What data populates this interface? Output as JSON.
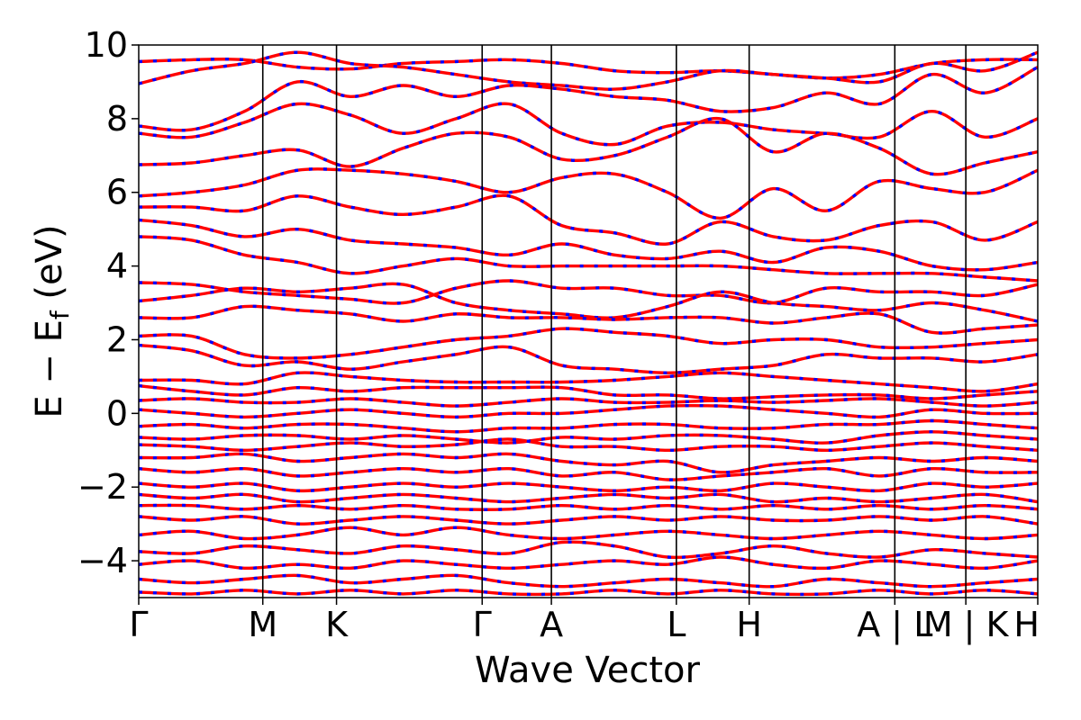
{
  "chart_data": {
    "type": "line",
    "title": "",
    "xlabel": "Wave Vector",
    "ylabel": "E − E",
    "ylabel_sub": "f",
    "ylabel_unit": " (eV)",
    "ylim": [
      -5,
      10
    ],
    "yticks": [
      -4,
      -2,
      0,
      2,
      4,
      6,
      8,
      10
    ],
    "ytick_labels": [
      "−4",
      "−2",
      "0",
      "2",
      "4",
      "6",
      "8",
      "10"
    ],
    "xlim": [
      0,
      1
    ],
    "high_symmetry_points": [
      {
        "label": "Γ",
        "x": 0.0
      },
      {
        "label": "M",
        "x": 0.138
      },
      {
        "label": "K",
        "x": 0.22
      },
      {
        "label": "Γ",
        "x": 0.382
      },
      {
        "label": "A",
        "x": 0.459
      },
      {
        "label": "L",
        "x": 0.598
      },
      {
        "label": "H",
        "x": 0.679
      },
      {
        "label": "A | L",
        "x": 0.841
      },
      {
        "label": "M | K",
        "x": 0.92
      },
      {
        "label": "H",
        "x": 1.0
      }
    ],
    "series": [
      {
        "color": "#ff0000",
        "style": "solid"
      },
      {
        "color": "#0000ff",
        "style": "dotted"
      }
    ],
    "bands": [
      [
        9.55,
        9.6,
        9.6,
        9.4,
        9.35,
        9.5,
        9.55,
        9.6,
        9.5,
        9.3,
        9.25,
        9.3,
        9.2,
        9.1,
        9.2,
        9.5,
        9.6,
        9.6
      ],
      [
        8.95,
        9.3,
        9.5,
        9.8,
        9.5,
        9.4,
        9.2,
        9.0,
        8.9,
        8.8,
        9.0,
        9.3,
        9.2,
        9.1,
        9.0,
        9.5,
        9.3,
        9.8
      ],
      [
        7.8,
        7.7,
        8.2,
        9.0,
        8.6,
        8.9,
        8.6,
        8.9,
        8.8,
        8.6,
        8.5,
        8.2,
        8.3,
        8.7,
        8.4,
        9.2,
        8.7,
        9.4
      ],
      [
        7.6,
        7.5,
        7.9,
        8.4,
        8.1,
        7.6,
        8.0,
        8.4,
        7.6,
        7.3,
        7.8,
        7.9,
        7.7,
        7.6,
        7.5,
        8.2,
        7.5,
        8.0
      ],
      [
        6.75,
        6.8,
        7.0,
        7.15,
        6.7,
        7.2,
        7.6,
        7.5,
        6.9,
        7.0,
        7.5,
        8.0,
        7.1,
        7.6,
        7.2,
        6.5,
        6.8,
        7.1
      ],
      [
        5.9,
        6.0,
        6.2,
        6.6,
        6.6,
        6.5,
        6.3,
        6.0,
        6.4,
        6.5,
        6.0,
        5.3,
        6.1,
        5.5,
        6.3,
        6.1,
        6.0,
        6.6
      ],
      [
        5.6,
        5.6,
        5.5,
        5.9,
        5.6,
        5.4,
        5.6,
        5.9,
        5.1,
        4.9,
        4.6,
        5.2,
        4.8,
        4.7,
        5.1,
        5.2,
        4.7,
        5.2
      ],
      [
        5.25,
        5.1,
        4.8,
        5.0,
        4.7,
        4.6,
        4.5,
        4.3,
        4.6,
        4.3,
        4.2,
        4.4,
        4.1,
        4.5,
        4.4,
        4.0,
        3.9,
        4.1
      ],
      [
        4.8,
        4.7,
        4.3,
        4.1,
        3.8,
        4.0,
        4.2,
        4.0,
        4.0,
        4.0,
        4.0,
        4.0,
        3.9,
        3.8,
        3.8,
        3.8,
        3.7,
        3.6
      ],
      [
        3.55,
        3.5,
        3.3,
        3.2,
        3.1,
        3.0,
        3.4,
        3.6,
        3.4,
        3.4,
        3.2,
        3.2,
        3.0,
        3.4,
        3.3,
        3.3,
        3.2,
        3.5
      ],
      [
        3.05,
        3.2,
        3.4,
        3.3,
        3.4,
        3.5,
        3.0,
        2.8,
        2.7,
        2.6,
        2.9,
        3.3,
        3.0,
        2.9,
        2.8,
        3.0,
        2.8,
        2.5
      ],
      [
        2.6,
        2.6,
        2.9,
        2.8,
        2.7,
        2.5,
        2.7,
        2.6,
        2.6,
        2.55,
        2.6,
        2.6,
        2.45,
        2.6,
        2.7,
        2.2,
        2.3,
        2.4
      ],
      [
        2.1,
        2.1,
        1.6,
        1.5,
        1.6,
        1.8,
        2.0,
        2.1,
        2.3,
        2.2,
        2.1,
        1.9,
        2.0,
        2.0,
        1.8,
        1.8,
        1.9,
        2.0
      ],
      [
        1.85,
        1.7,
        1.3,
        1.4,
        1.2,
        1.4,
        1.6,
        1.8,
        1.3,
        1.2,
        1.1,
        1.2,
        1.3,
        1.6,
        1.5,
        1.5,
        1.4,
        1.6
      ],
      [
        0.9,
        0.9,
        0.8,
        1.1,
        1.0,
        0.9,
        0.85,
        0.85,
        0.85,
        0.9,
        1.0,
        1.1,
        1.0,
        0.9,
        0.8,
        0.7,
        0.6,
        0.8
      ],
      [
        0.75,
        0.6,
        0.5,
        0.7,
        0.6,
        0.7,
        0.7,
        0.7,
        0.7,
        0.5,
        0.5,
        0.4,
        0.45,
        0.5,
        0.5,
        0.4,
        0.5,
        0.6
      ],
      [
        0.35,
        0.4,
        0.3,
        0.3,
        0.4,
        0.3,
        0.2,
        0.3,
        0.4,
        0.3,
        0.3,
        0.35,
        0.3,
        0.35,
        0.4,
        0.3,
        0.2,
        0.3
      ],
      [
        0.1,
        0.0,
        -0.1,
        0.0,
        0.1,
        0.0,
        -0.1,
        0.0,
        0.0,
        0.1,
        0.2,
        0.2,
        0.1,
        0.0,
        -0.1,
        0.1,
        0.0,
        0.0
      ],
      [
        -0.35,
        -0.3,
        -0.4,
        -0.3,
        -0.3,
        -0.4,
        -0.5,
        -0.4,
        -0.4,
        -0.3,
        -0.3,
        -0.4,
        -0.4,
        -0.3,
        -0.3,
        -0.2,
        -0.3,
        -0.4
      ],
      [
        -0.65,
        -0.7,
        -0.6,
        -0.6,
        -0.7,
        -0.6,
        -0.7,
        -0.8,
        -0.65,
        -0.7,
        -0.6,
        -0.6,
        -0.7,
        -0.8,
        -0.6,
        -0.5,
        -0.6,
        -0.7
      ],
      [
        -0.85,
        -0.9,
        -1.0,
        -0.9,
        -0.8,
        -0.9,
        -0.85,
        -0.7,
        -0.9,
        -0.9,
        -1.0,
        -0.9,
        -0.9,
        -1.0,
        -0.9,
        -0.8,
        -0.9,
        -1.0
      ],
      [
        -1.2,
        -1.2,
        -1.1,
        -1.3,
        -1.2,
        -1.1,
        -1.2,
        -1.1,
        -1.3,
        -1.4,
        -1.3,
        -1.6,
        -1.4,
        -1.3,
        -1.2,
        -1.3,
        -1.2,
        -1.3
      ],
      [
        -1.5,
        -1.6,
        -1.5,
        -1.7,
        -1.6,
        -1.5,
        -1.6,
        -1.5,
        -1.7,
        -1.6,
        -1.8,
        -1.7,
        -1.6,
        -1.5,
        -1.7,
        -1.5,
        -1.6,
        -1.6
      ],
      [
        -1.9,
        -2.0,
        -1.9,
        -2.1,
        -2.0,
        -1.9,
        -2.0,
        -1.9,
        -2.0,
        -2.1,
        -2.0,
        -2.1,
        -1.9,
        -2.0,
        -2.1,
        -1.9,
        -2.0,
        -1.9
      ],
      [
        -2.2,
        -2.3,
        -2.2,
        -2.4,
        -2.3,
        -2.2,
        -2.3,
        -2.4,
        -2.3,
        -2.2,
        -2.3,
        -2.2,
        -2.4,
        -2.3,
        -2.4,
        -2.3,
        -2.2,
        -2.4
      ],
      [
        -2.5,
        -2.5,
        -2.6,
        -2.5,
        -2.6,
        -2.5,
        -2.6,
        -2.6,
        -2.5,
        -2.6,
        -2.5,
        -2.6,
        -2.5,
        -2.6,
        -2.5,
        -2.6,
        -2.5,
        -2.6
      ],
      [
        -2.8,
        -2.9,
        -2.8,
        -3.0,
        -2.9,
        -2.8,
        -2.9,
        -3.0,
        -2.9,
        -2.8,
        -2.9,
        -2.8,
        -2.9,
        -2.9,
        -2.8,
        -2.9,
        -2.8,
        -3.0
      ],
      [
        -3.3,
        -3.2,
        -3.4,
        -3.3,
        -3.1,
        -3.3,
        -3.1,
        -3.3,
        -3.4,
        -3.3,
        -3.2,
        -3.3,
        -3.4,
        -3.3,
        -3.2,
        -3.3,
        -3.4,
        -3.3
      ],
      [
        -3.75,
        -3.8,
        -3.6,
        -3.7,
        -3.8,
        -3.6,
        -3.7,
        -3.8,
        -3.5,
        -3.6,
        -3.9,
        -3.8,
        -3.6,
        -3.8,
        -3.9,
        -3.7,
        -3.8,
        -3.9
      ],
      [
        -4.1,
        -4.0,
        -4.2,
        -4.1,
        -4.2,
        -4.0,
        -4.1,
        -4.2,
        -4.1,
        -4.0,
        -4.1,
        -3.9,
        -4.1,
        -4.2,
        -4.0,
        -4.1,
        -4.2,
        -4.0
      ],
      [
        -4.5,
        -4.6,
        -4.5,
        -4.4,
        -4.6,
        -4.5,
        -4.4,
        -4.6,
        -4.7,
        -4.6,
        -4.5,
        -4.6,
        -4.7,
        -4.5,
        -4.6,
        -4.7,
        -4.6,
        -4.5
      ],
      [
        -4.85,
        -4.9,
        -4.8,
        -4.9,
        -4.8,
        -4.9,
        -4.8,
        -4.9,
        -4.9,
        -4.8,
        -4.9,
        -4.8,
        -4.9,
        -4.9,
        -4.8,
        -4.9,
        -4.8,
        -4.9
      ]
    ]
  }
}
